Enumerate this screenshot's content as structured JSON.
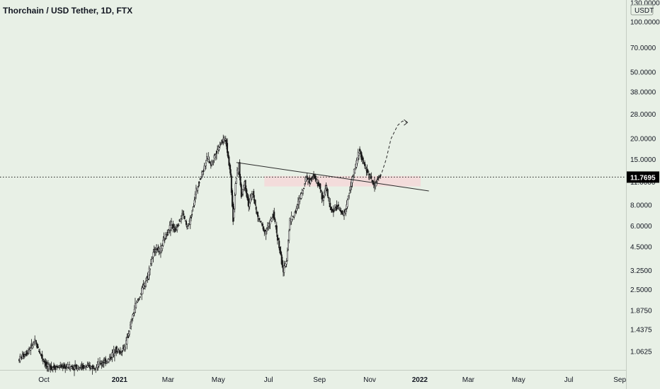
{
  "header": {
    "symbol_title": "Thorchain / USD Tether, 1D, FTX"
  },
  "price_axis": {
    "currency_label": "USDT",
    "current_price_label": "11.7695",
    "current_price": 11.7695
  },
  "colors": {
    "background": "#e8f0e6",
    "candles": "#1a1a1a",
    "zone": "#f5d8d8",
    "text": "#131722",
    "price_tag": "#000000"
  },
  "chart_data": {
    "type": "candlestick",
    "scale": "log",
    "ylim": [
      0.85,
      130
    ],
    "x_ticks": [
      {
        "label": "Oct",
        "bold": false,
        "day": 30
      },
      {
        "label": "2021",
        "bold": true,
        "day": 122
      },
      {
        "label": "Mar",
        "bold": false,
        "day": 181
      },
      {
        "label": "May",
        "bold": false,
        "day": 242
      },
      {
        "label": "Jul",
        "bold": false,
        "day": 303
      },
      {
        "label": "Sep",
        "bold": false,
        "day": 365
      },
      {
        "label": "Nov",
        "bold": false,
        "day": 426
      },
      {
        "label": "2022",
        "bold": true,
        "day": 487
      },
      {
        "label": "Mar",
        "bold": false,
        "day": 546
      },
      {
        "label": "May",
        "bold": false,
        "day": 607
      },
      {
        "label": "Jul",
        "bold": false,
        "day": 668
      },
      {
        "label": "Sep",
        "bold": false,
        "day": 730
      }
    ],
    "y_ticks": [
      {
        "label": "130.0000",
        "value": 130
      },
      {
        "label": "100.0000",
        "value": 100
      },
      {
        "label": "70.0000",
        "value": 70
      },
      {
        "label": "50.0000",
        "value": 50
      },
      {
        "label": "38.0000",
        "value": 38
      },
      {
        "label": "28.0000",
        "value": 28
      },
      {
        "label": "20.0000",
        "value": 20
      },
      {
        "label": "15.0000",
        "value": 15
      },
      {
        "label": "11.0000",
        "value": 11
      },
      {
        "label": "8.0000",
        "value": 8
      },
      {
        "label": "6.0000",
        "value": 6
      },
      {
        "label": "4.5000",
        "value": 4.5
      },
      {
        "label": "3.2500",
        "value": 3.25
      },
      {
        "label": "2.5000",
        "value": 2.5
      },
      {
        "label": "1.8750",
        "value": 1.875
      },
      {
        "label": "1.4375",
        "value": 1.4375
      },
      {
        "label": "1.0625",
        "value": 1.0625
      }
    ],
    "price_path": [
      [
        0,
        0.95
      ],
      [
        10,
        1.05
      ],
      [
        20,
        1.22
      ],
      [
        28,
        1.0
      ],
      [
        35,
        0.86
      ],
      [
        90,
        0.86
      ],
      [
        100,
        0.9
      ],
      [
        110,
        0.95
      ],
      [
        118,
        1.1
      ],
      [
        124,
        1.05
      ],
      [
        130,
        1.15
      ],
      [
        136,
        1.5
      ],
      [
        142,
        2.0
      ],
      [
        148,
        2.3
      ],
      [
        152,
        2.6
      ],
      [
        157,
        3.0
      ],
      [
        162,
        3.8
      ],
      [
        167,
        4.5
      ],
      [
        172,
        4.2
      ],
      [
        176,
        4.8
      ],
      [
        181,
        5.5
      ],
      [
        186,
        6.2
      ],
      [
        190,
        5.6
      ],
      [
        196,
        6.5
      ],
      [
        200,
        7.2
      ],
      [
        205,
        5.8
      ],
      [
        210,
        6.8
      ],
      [
        216,
        9.8
      ],
      [
        222,
        12
      ],
      [
        226,
        13.5
      ],
      [
        230,
        15.5
      ],
      [
        234,
        14
      ],
      [
        240,
        16.5
      ],
      [
        246,
        19
      ],
      [
        252,
        20
      ],
      [
        258,
        12
      ],
      [
        261,
        6.5
      ],
      [
        264,
        11
      ],
      [
        268,
        14
      ],
      [
        271,
        9
      ],
      [
        275,
        11
      ],
      [
        280,
        8
      ],
      [
        285,
        9.5
      ],
      [
        290,
        7
      ],
      [
        295,
        6.2
      ],
      [
        300,
        5.5
      ],
      [
        305,
        6.2
      ],
      [
        310,
        7
      ],
      [
        314,
        5.5
      ],
      [
        318,
        4.2
      ],
      [
        322,
        3.2
      ],
      [
        326,
        3.8
      ],
      [
        330,
        6.5
      ],
      [
        334,
        6.8
      ],
      [
        338,
        7.6
      ],
      [
        342,
        8.8
      ],
      [
        346,
        10
      ],
      [
        350,
        12
      ],
      [
        354,
        11
      ],
      [
        358,
        12.5
      ],
      [
        362,
        11
      ],
      [
        366,
        10.5
      ],
      [
        370,
        8.5
      ],
      [
        374,
        10.5
      ],
      [
        378,
        8
      ],
      [
        382,
        7.2
      ],
      [
        386,
        8
      ],
      [
        390,
        7.5
      ],
      [
        394,
        7
      ],
      [
        398,
        7.5
      ],
      [
        402,
        9.5
      ],
      [
        405,
        11
      ],
      [
        408,
        12.5
      ],
      [
        411,
        14.5
      ],
      [
        414,
        17
      ],
      [
        417,
        15.5
      ],
      [
        420,
        14
      ],
      [
        423,
        13
      ],
      [
        426,
        12.5
      ],
      [
        430,
        11
      ],
      [
        433,
        10.5
      ],
      [
        436,
        11.3
      ],
      [
        439,
        11.77
      ]
    ],
    "resistance_zone": {
      "day_start": 298,
      "day_end": 488,
      "low": 10.35,
      "high": 11.95
    },
    "trendline": {
      "start": {
        "day": 264,
        "value": 14.4
      },
      "end": {
        "day": 498,
        "value": 9.72
      }
    },
    "projection": [
      [
        439,
        11.77
      ],
      [
        446,
        15
      ],
      [
        452,
        20
      ],
      [
        460,
        24
      ],
      [
        466,
        25.5
      ],
      [
        472,
        25
      ]
    ]
  }
}
